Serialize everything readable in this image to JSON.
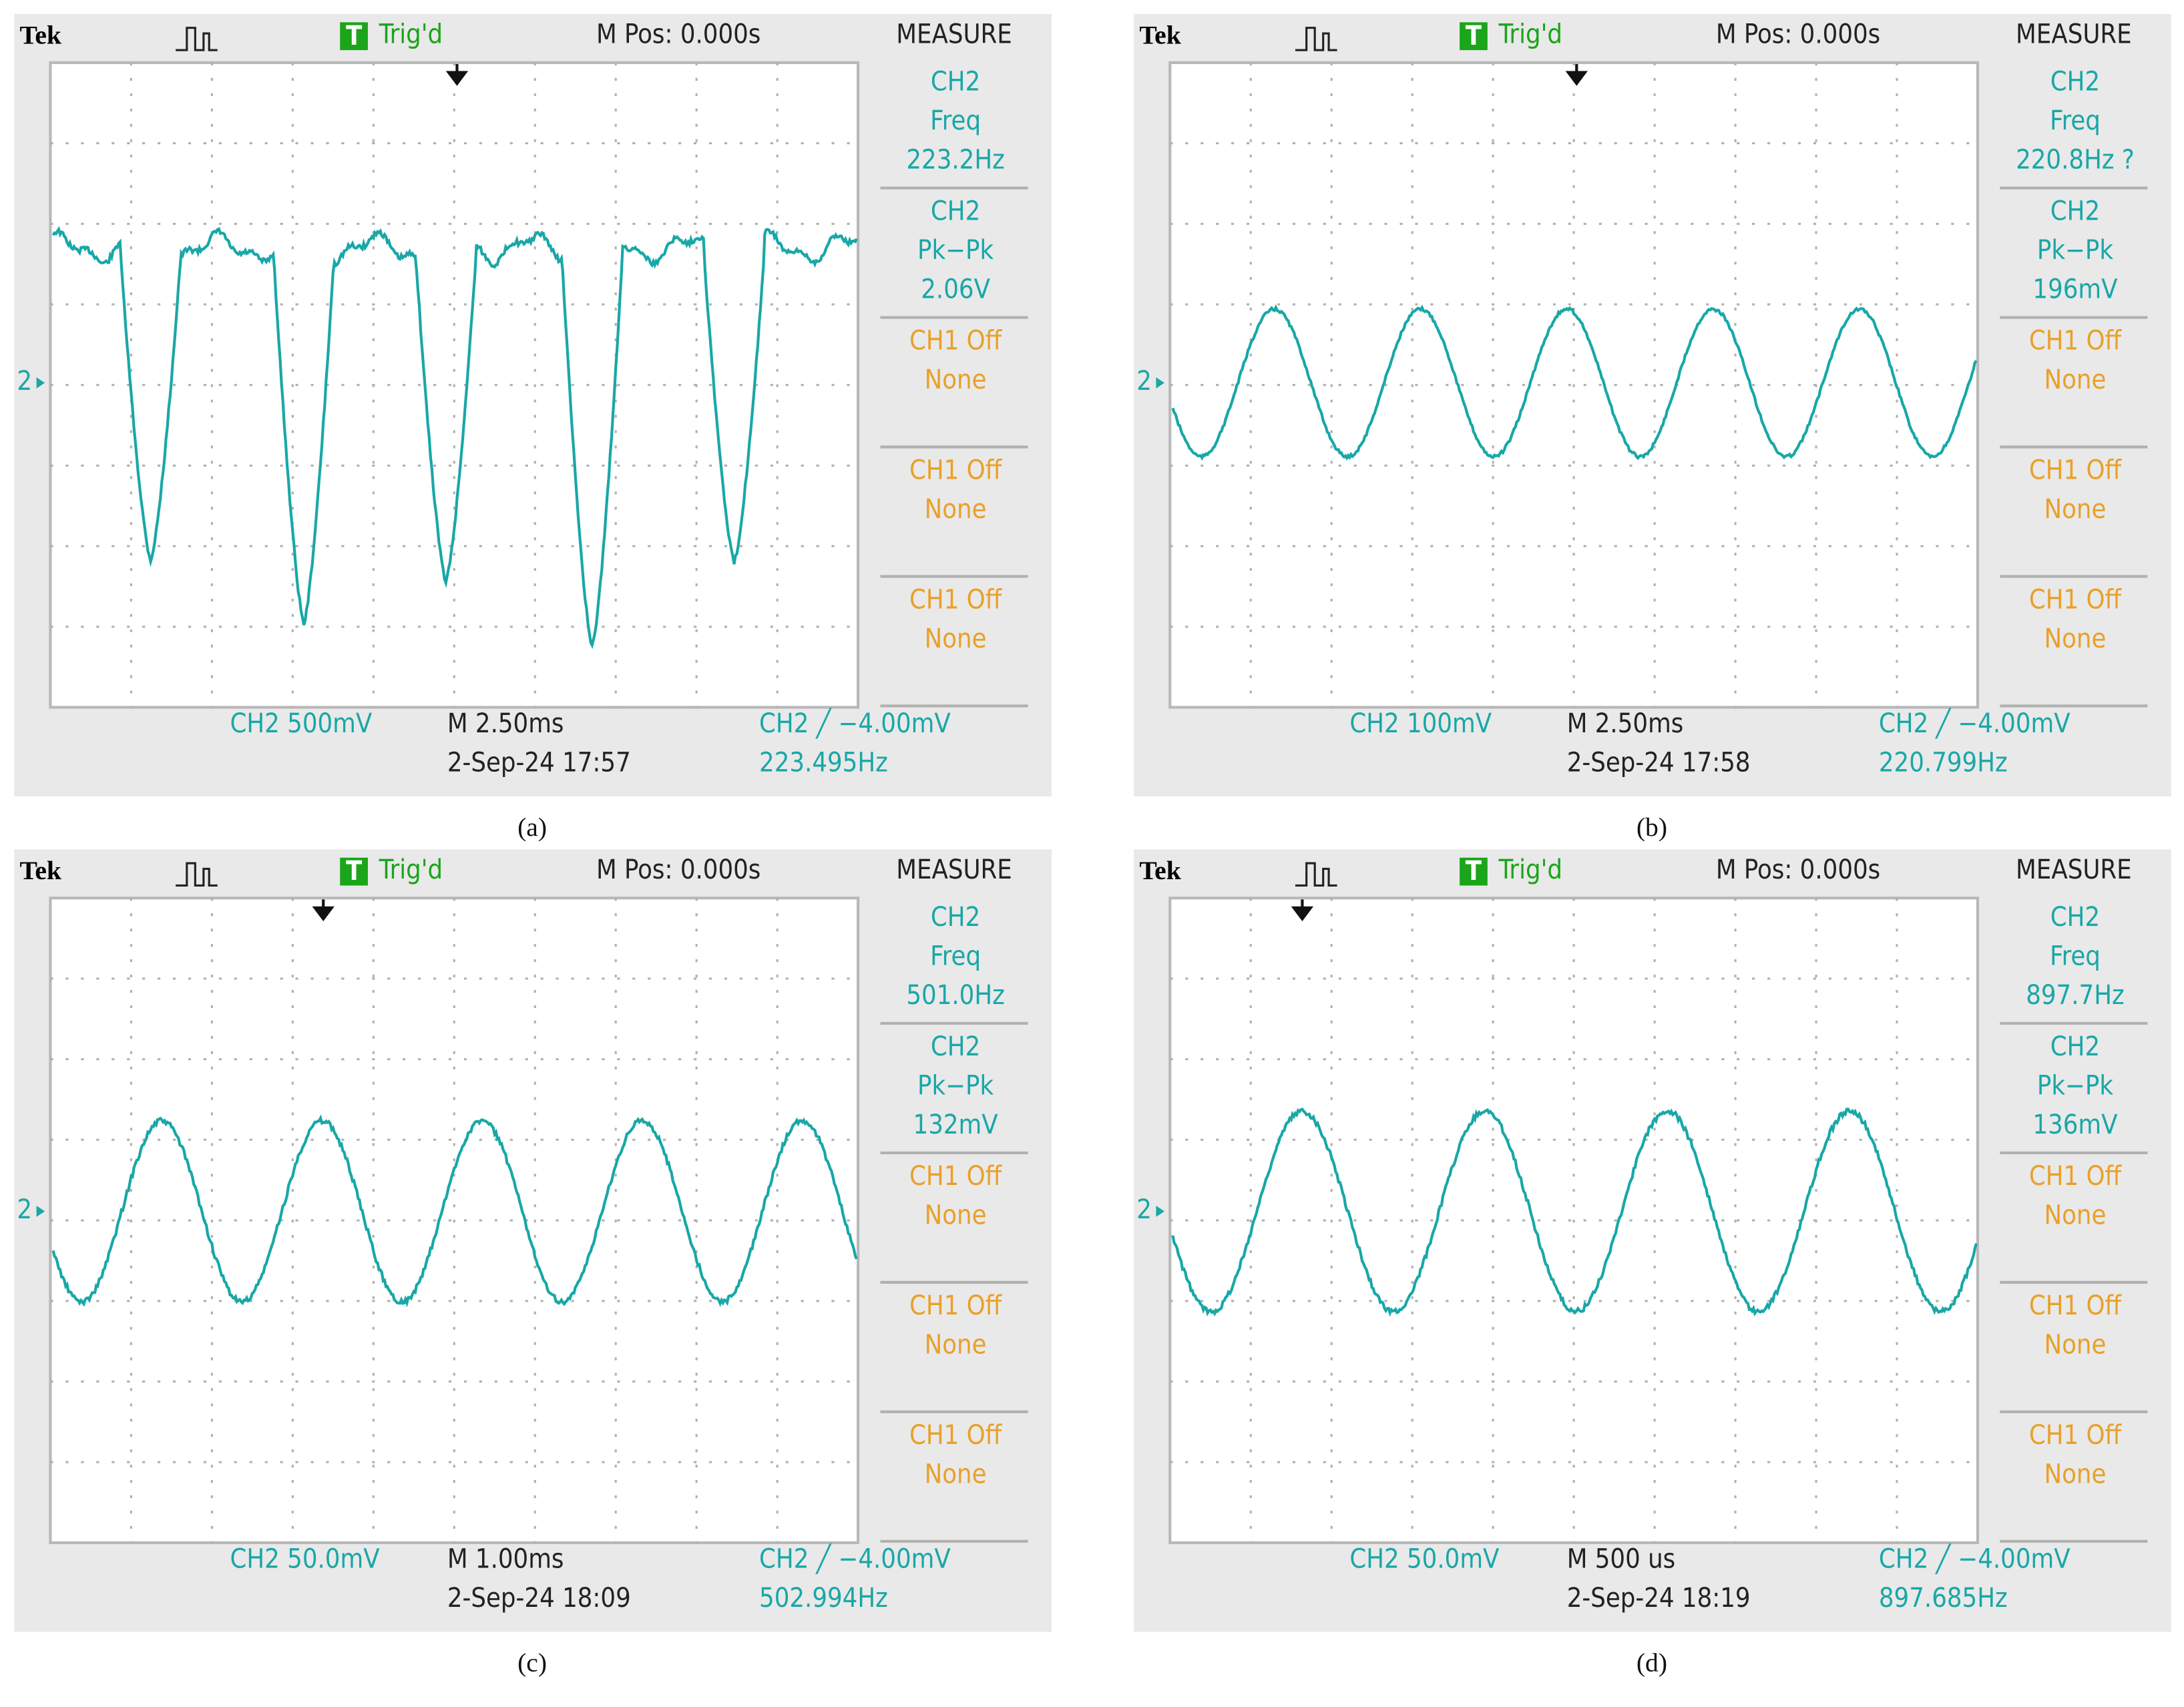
{
  "panels": [
    {
      "header": {
        "brand": "Tek",
        "status_icon": "T",
        "status": "Trig'd",
        "position": "M Pos: 0.000s",
        "menu": "MEASURE"
      },
      "measurements": [
        {
          "source": "CH2",
          "name": "Freq",
          "value": "223.2Hz"
        },
        {
          "source": "CH2",
          "name": "Pk−Pk",
          "value": "2.06V"
        },
        {
          "source": "CH1 Off",
          "name": "None"
        },
        {
          "source": "CH1 Off",
          "name": "None"
        },
        {
          "source": "CH1 Off",
          "name": "None"
        }
      ],
      "ground_marker": "2",
      "footer": {
        "scale": "CH2  500mV",
        "timebase": "M 2.50ms",
        "datetime": "2-Sep-24 17:57",
        "trigger": "CH2 ╱ −4.00mV",
        "frequency": "223.495Hz"
      },
      "caption": "(a)"
    },
    {
      "header": {
        "brand": "Tek",
        "status_icon": "T",
        "status": "Trig'd",
        "position": "M Pos: 0.000s",
        "menu": "MEASURE"
      },
      "measurements": [
        {
          "source": "CH2",
          "name": "Freq",
          "value": "220.8Hz ?"
        },
        {
          "source": "CH2",
          "name": "Pk−Pk",
          "value": "196mV"
        },
        {
          "source": "CH1 Off",
          "name": "None"
        },
        {
          "source": "CH1 Off",
          "name": "None"
        },
        {
          "source": "CH1 Off",
          "name": "None"
        }
      ],
      "ground_marker": "2",
      "footer": {
        "scale": "CH2  100mV",
        "timebase": "M 2.50ms",
        "datetime": "2-Sep-24 17:58",
        "trigger": "CH2 ╱ −4.00mV",
        "frequency": "220.799Hz"
      },
      "caption": "(b)"
    },
    {
      "header": {
        "brand": "Tek",
        "status_icon": "T",
        "status": "Trig'd",
        "position": "M Pos: 0.000s",
        "menu": "MEASURE"
      },
      "measurements": [
        {
          "source": "CH2",
          "name": "Freq",
          "value": "501.0Hz"
        },
        {
          "source": "CH2",
          "name": "Pk−Pk",
          "value": "132mV"
        },
        {
          "source": "CH1 Off",
          "name": "None"
        },
        {
          "source": "CH1 Off",
          "name": "None"
        },
        {
          "source": "CH1 Off",
          "name": "None"
        }
      ],
      "ground_marker": "2",
      "footer": {
        "scale": "CH2  50.0mV",
        "timebase": "M 1.00ms",
        "datetime": "2-Sep-24 18:09",
        "trigger": "CH2 ╱ −4.00mV",
        "frequency": "502.994Hz"
      },
      "caption": "(c)"
    },
    {
      "header": {
        "brand": "Tek",
        "status_icon": "T",
        "status": "Trig'd",
        "position": "M Pos: 0.000s",
        "menu": "MEASURE"
      },
      "measurements": [
        {
          "source": "CH2",
          "name": "Freq",
          "value": "897.7Hz"
        },
        {
          "source": "CH2",
          "name": "Pk−Pk",
          "value": "136mV"
        },
        {
          "source": "CH1 Off",
          "name": "None"
        },
        {
          "source": "CH1 Off",
          "name": "None"
        },
        {
          "source": "CH1 Off",
          "name": "None"
        }
      ],
      "ground_marker": "2",
      "footer": {
        "scale": "CH2  50.0mV",
        "timebase": "M 500 us",
        "datetime": "2-Sep-24 18:19",
        "trigger": "CH2 ╱ −4.00mV",
        "frequency": "897.685Hz"
      },
      "caption": "(d)"
    }
  ]
}
